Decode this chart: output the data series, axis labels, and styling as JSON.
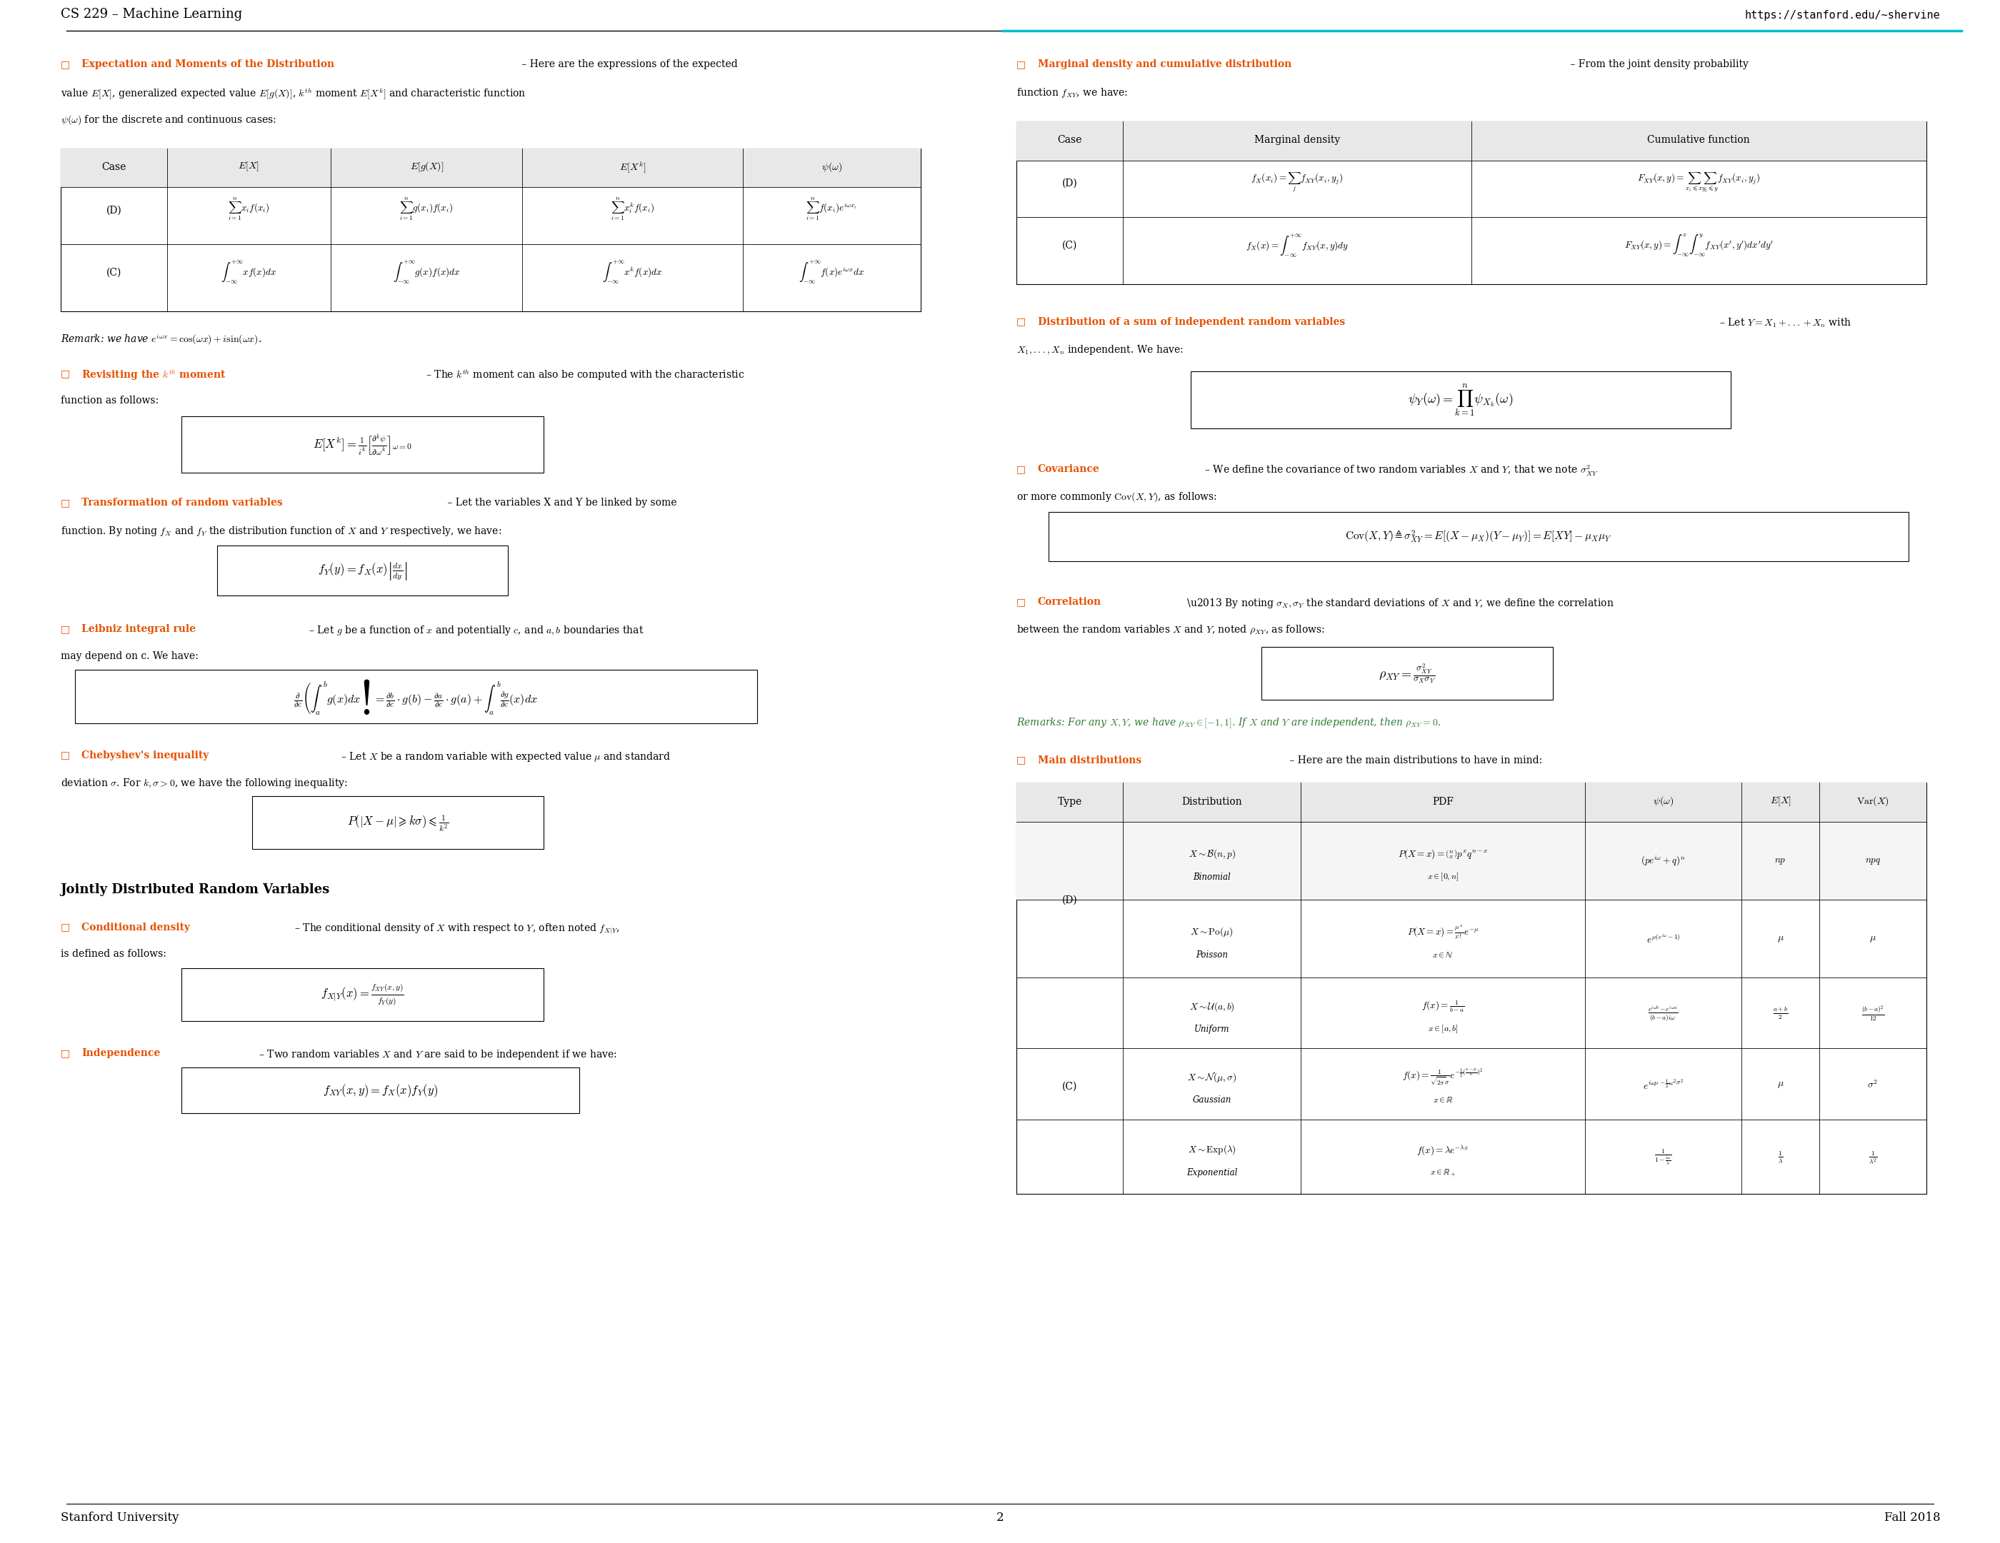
{
  "page_title_left": "CS 229 – Machine Learning",
  "page_title_right": "https://stanford.edu/~shervine",
  "footer_left": "Stanford University",
  "footer_center": "2",
  "footer_right": "Fall 2018",
  "bg_color": "#ffffff",
  "text_color": "#000000",
  "header_line_color": "#00bcd4",
  "section_color": "#e65100",
  "italic_remark_color": "#2e7d32"
}
